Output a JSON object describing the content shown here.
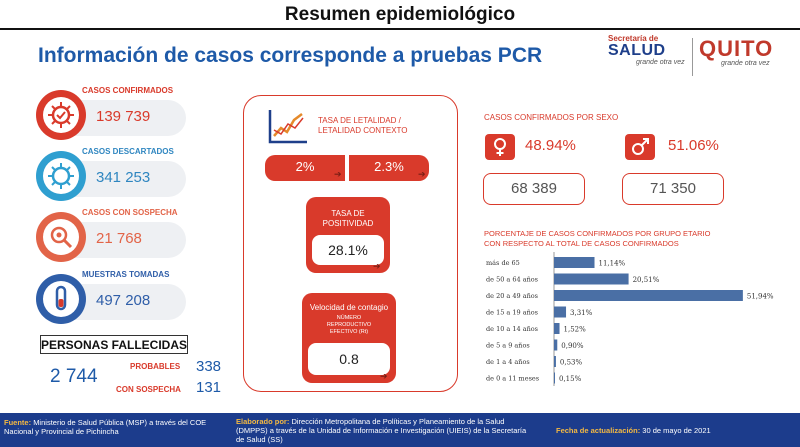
{
  "banner": {
    "title": "Resumen epidemiológico"
  },
  "main_title": "Información de casos corresponde a pruebas PCR",
  "logos": {
    "salud_top": "Secretaría de",
    "salud_main": "SALUD",
    "salud_tag": "grande otra vez",
    "quito_main": "QUITO",
    "quito_tag": "grande otra vez"
  },
  "stats": [
    {
      "label": "CASOS CONFIRMADOS",
      "value": "139 739"
    },
    {
      "label": "CASOS DESCARTADOS",
      "value": "341 253"
    },
    {
      "label": "CASOS CON SOSPECHA",
      "value": "21 768"
    },
    {
      "label": "MUESTRAS TOMADAS",
      "value": "497 208"
    }
  ],
  "fallecidas": {
    "title": "PERSONAS FALLECIDAS",
    "total": "2 744",
    "probables_label": "PROBABLES",
    "probables_value": "338",
    "sospecha_label": "CON SOSPECHA",
    "sospecha_value": "131"
  },
  "letalidad": {
    "label_line1": "TASA DE LETALIDAD /",
    "label_line2": "LETALIDAD CONTEXTO",
    "rate1": "2%",
    "rate2": "2.3%"
  },
  "positividad": {
    "line1": "TASA DE",
    "line2": "POSITIVIDAD",
    "value": "28.1%"
  },
  "velocidad": {
    "title": "Velocidad de contagio",
    "sub1": "NÚMERO",
    "sub2": "REPRODUCTIVO",
    "sub3": "EFECTIVO (Rt)",
    "value": "0.8"
  },
  "sexo": {
    "title": "CASOS CONFIRMADOS POR SEXO",
    "female_pct": "48.94%",
    "female_count": "68 389",
    "male_pct": "51.06%",
    "male_count": "71 350"
  },
  "age_title": {
    "line1": "PORCENTAJE DE CASOS CONFIRMADOS POR GRUPO ETARIO",
    "line2": "CON RESPECTO AL TOTAL DE CASOS CONFIRMADOS"
  },
  "chart_data": {
    "type": "bar",
    "orientation": "horizontal",
    "categories": [
      "más de 65",
      "de 50 a 64 años",
      "de 20 a 49 años",
      "de 15 a 19 años",
      "de 10 a 14 años",
      "de 5 a 9 años",
      "de 1 a 4 años",
      "de 0 a 11 meses"
    ],
    "values": [
      11.14,
      20.51,
      51.94,
      3.31,
      1.52,
      0.9,
      0.53,
      0.15
    ],
    "labels": [
      "11,14%",
      "20,51%",
      "51,94%",
      "3,31%",
      "1,52%",
      "0,90%",
      "0,53%",
      "0,15%"
    ],
    "xlim": [
      0,
      55
    ],
    "title": "",
    "xlabel": "",
    "ylabel": "",
    "bar_color": "#4a6fa5"
  },
  "footer": {
    "fuente_label": "Fuente:",
    "fuente_text": "Ministerio de Salud Pública (MSP) a través del COE Nacional y Provincial de Pichincha",
    "elaborado_label": "Elaborado por:",
    "elaborado_text": "Dirección Metropolitana de Políticas y Planeamiento de la Salud (DMPPS) a través de la Unidad de Información e Investigación (UIEIS) de la Secretaría de Salud (SS)",
    "fecha_label": "Fecha de actualización:",
    "fecha_text": "30 de mayo de 2021"
  },
  "colors": {
    "red": "#d93a2b",
    "blue": "#2f86c0",
    "navy": "#1c3c8c",
    "title_blue": "#1e5aa8"
  }
}
